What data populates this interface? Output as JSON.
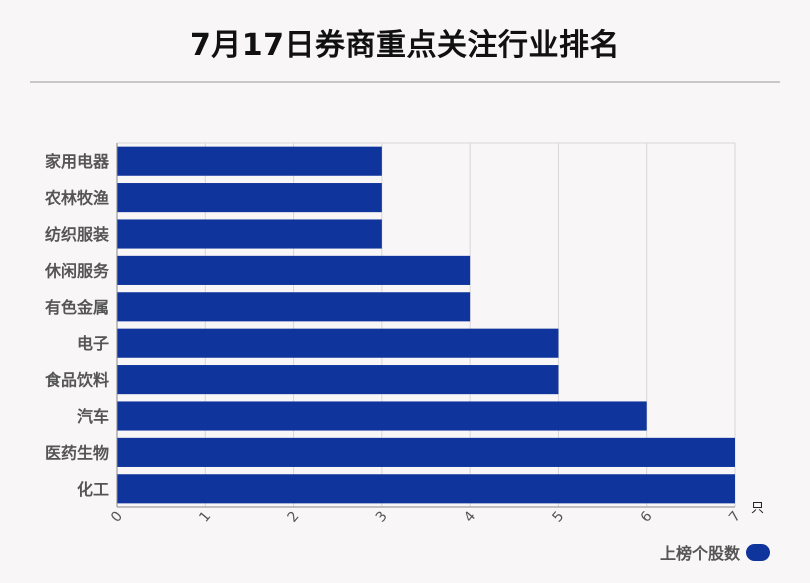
{
  "chart_data": {
    "type": "bar",
    "orientation": "horizontal",
    "title": "7月17日券商重点关注行业排名",
    "categories": [
      "家用电器",
      "农林牧渔",
      "纺织服装",
      "休闲服务",
      "有色金属",
      "电子",
      "食品饮料",
      "汽车",
      "医药生物",
      "化工"
    ],
    "series": [
      {
        "name": "上榜个股数",
        "values": [
          3,
          3,
          3,
          4,
          4,
          5,
          5,
          6,
          7,
          7
        ]
      }
    ],
    "xlim": [
      0,
      7
    ],
    "x_ticks": [
      "0",
      "1",
      "2",
      "3",
      "4",
      "5",
      "6",
      "7"
    ],
    "x_unit": "只",
    "grid": true,
    "legend_position": "bottom-right",
    "bar_color": "#0f349b",
    "grid_color": "#d8d6d7",
    "axis_color": "#888888"
  }
}
